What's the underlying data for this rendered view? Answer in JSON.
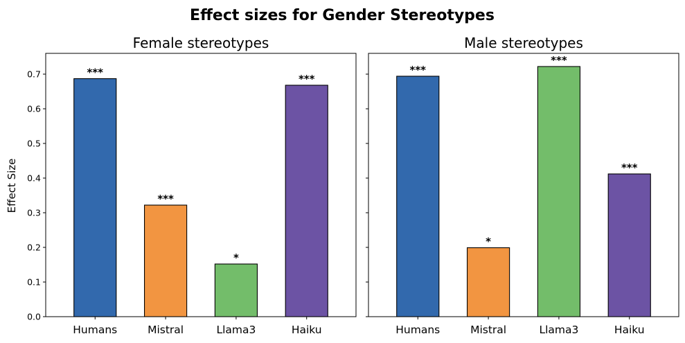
{
  "chart_data": {
    "type": "bar",
    "title": "Effect sizes for Gender Stereotypes",
    "ylabel": "Effect Size",
    "ylim": [
      0,
      0.76
    ],
    "yticks": [
      "0.0",
      "0.1",
      "0.2",
      "0.3",
      "0.4",
      "0.5",
      "0.6",
      "0.7"
    ],
    "categories": [
      "Humans",
      "Mistral",
      "Llama3",
      "Haiku"
    ],
    "colors": [
      "#3269ad",
      "#f29541",
      "#73bd6a",
      "#6c53a4"
    ],
    "panels": [
      {
        "title": "Female stereotypes",
        "values": [
          0.687,
          0.322,
          0.152,
          0.668
        ],
        "significance": [
          "***",
          "***",
          "*",
          "***"
        ]
      },
      {
        "title": "Male stereotypes",
        "values": [
          0.694,
          0.199,
          0.722,
          0.412
        ],
        "significance": [
          "***",
          "*",
          "***",
          "***"
        ]
      }
    ]
  }
}
